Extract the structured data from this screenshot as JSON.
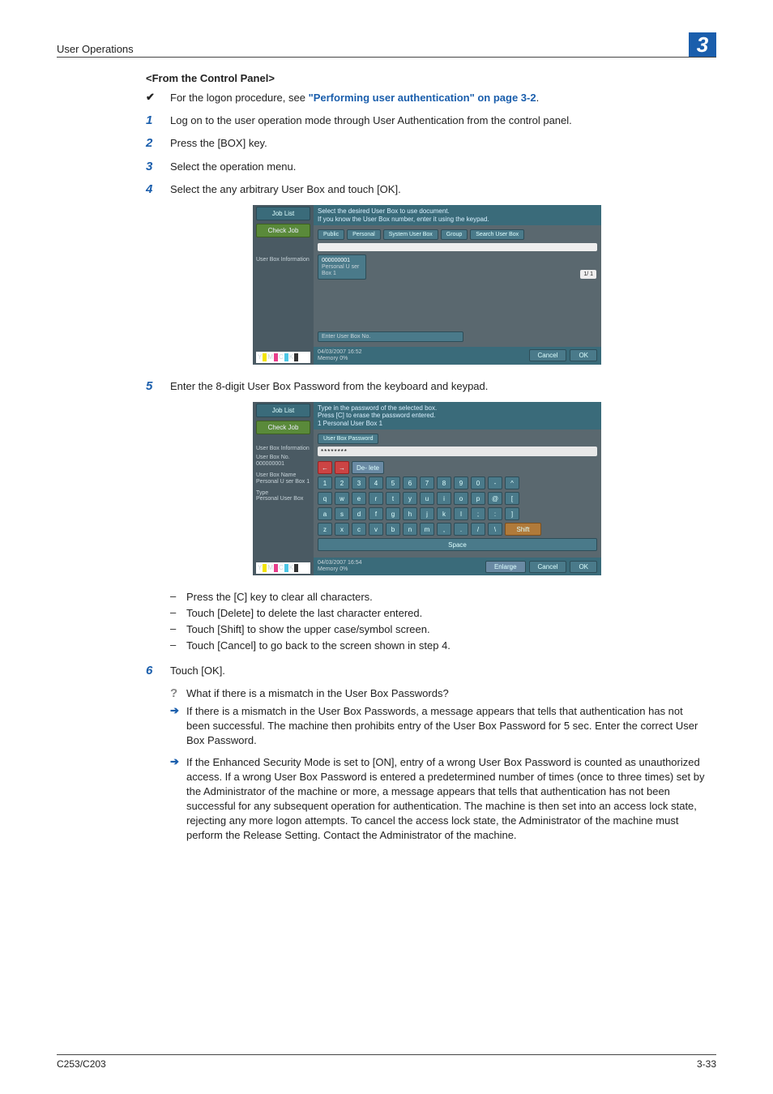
{
  "header": {
    "section": "User Operations",
    "chapter": "3"
  },
  "section_title": "<From the Control Panel>",
  "tick_row": {
    "prefix": "For the logon procedure, see ",
    "link": "\"Performing user authentication\" on page 3-2",
    "suffix": "."
  },
  "steps": {
    "s1": {
      "num": "1",
      "text": "Log on to the user operation mode through User Authentication from the control panel."
    },
    "s2": {
      "num": "2",
      "text": "Press the [BOX] key."
    },
    "s3": {
      "num": "3",
      "text": "Select the operation menu."
    },
    "s4": {
      "num": "4",
      "text": "Select the any arbitrary User Box and touch [OK]."
    },
    "s5": {
      "num": "5",
      "text": "Enter the 8-digit User Box Password from the keyboard and keypad."
    },
    "s6": {
      "num": "6",
      "text": "Touch [OK]."
    }
  },
  "shot1": {
    "joblist": "Job List",
    "checkjob": "Check Job",
    "userboxinfo": "User Box Information",
    "msg1": "Select the desired User Box to use document.",
    "msg2": "If you know the User Box number, enter it using the keypad.",
    "tabs": {
      "public": "Public",
      "personal": "Personal",
      "system": "System User Box",
      "group": "Group",
      "search": "Search User Box"
    },
    "box": {
      "id": "000000001",
      "name": "Personal U ser Box 1"
    },
    "pager": "1/ 1",
    "enterno": "Enter User Box No.",
    "datetime": "04/03/2007   16:52",
    "memory": "Memory        0%",
    "cancel": "Cancel",
    "ok": "OK"
  },
  "shot2": {
    "joblist": "Job List",
    "checkjob": "Check Job",
    "userboxinfo": "User Box Information",
    "userboxno_lbl": "User Box No.",
    "userboxno_val": "000000001",
    "userboxname_lbl": "User Box Name",
    "userboxname_val": "Personal U ser Box 1",
    "type_lbl": "Type",
    "type_val": "Personal User Box",
    "msg1": "Type in the password of the selected box.",
    "msg2": "Press [C] to erase the password entered.",
    "msg3": "1                    Personal User Box 1",
    "pwlabel": "User Box Password",
    "pwvalue": "********",
    "delete": "De- lete",
    "row1": [
      "1",
      "2",
      "3",
      "4",
      "5",
      "6",
      "7",
      "8",
      "9",
      "0",
      "-",
      "^"
    ],
    "row2": [
      "q",
      "w",
      "e",
      "r",
      "t",
      "y",
      "u",
      "i",
      "o",
      "p",
      "@",
      "["
    ],
    "row3": [
      "a",
      "s",
      "d",
      "f",
      "g",
      "h",
      "j",
      "k",
      "l",
      ";",
      ":",
      "]"
    ],
    "row4": [
      "z",
      "x",
      "c",
      "v",
      "b",
      "n",
      "m",
      ",",
      ".",
      "/",
      "\\"
    ],
    "shift": "Shift",
    "space": "Space",
    "enlarge": "Enlarge",
    "datetime": "04/03/2007   16:54",
    "memory": "Memory        0%",
    "cancel": "Cancel",
    "ok": "OK"
  },
  "sublist": {
    "a": "Press the [C] key to clear all characters.",
    "b": "Touch [Delete] to delete the last character entered.",
    "c": "Touch [Shift] to show the upper case/symbol screen.",
    "d": "Touch [Cancel] to go back to the screen shown in step 4."
  },
  "qa": {
    "q": "What if there is a mismatch in the User Box Passwords?",
    "a1": "If there is a mismatch in the User Box Passwords, a message appears that tells that authentication has not been successful. The machine then prohibits entry of the User Box Password for 5 sec. Enter the correct User Box Password.",
    "a2": "If the Enhanced Security Mode is set to [ON], entry of a wrong User Box Password is counted as unauthorized access. If a wrong User Box Password is entered a predetermined number of times (once to three times) set by the Administrator of the machine or more, a message appears that tells that authentication has not been successful for any subsequent operation for authentication. The machine is then set into an access lock state, rejecting any more logon attempts. To cancel the access lock state, the Administrator of the machine must perform the Release Setting. Contact the Administrator of the machine."
  },
  "footer": {
    "model": "C253/C203",
    "page": "3-33"
  }
}
